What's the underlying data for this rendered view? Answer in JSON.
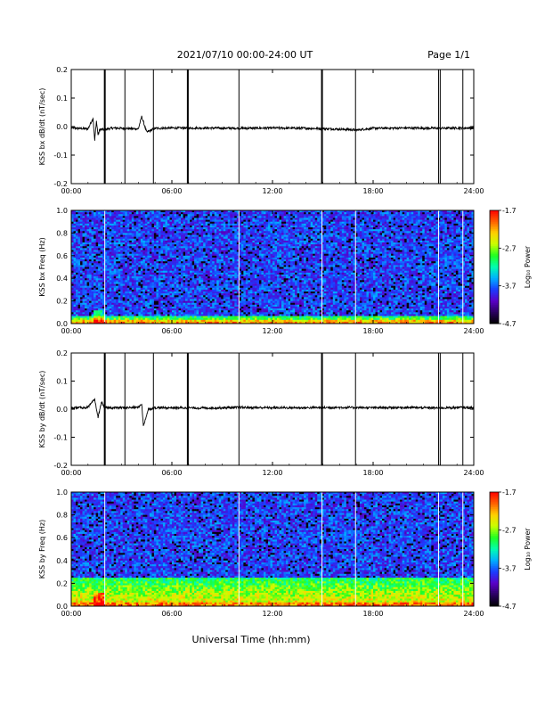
{
  "header": {
    "title": "2021/07/10  00:00-24:00 UT",
    "page": "Page 1/1"
  },
  "xlabel": "Universal Time (hh:mm)",
  "chart_data": [
    {
      "type": "line",
      "ylabel": "KSS bx dB/dt (nT/sec)",
      "xlim": [
        0,
        24
      ],
      "ylim": [
        -0.2,
        0.2
      ],
      "xticks": [
        "00:00",
        "06:00",
        "12:00",
        "18:00",
        "24:00"
      ],
      "yticks": [
        "0.2",
        "0.1",
        "0.0",
        "-0.1",
        "-0.2"
      ],
      "series": [
        {
          "x": [
            0.0,
            1.0,
            1.3,
            1.4,
            1.5,
            1.6,
            1.7,
            2.0,
            2.5,
            3.0,
            4.0,
            4.2,
            4.5,
            5.0,
            6.0,
            8.0,
            10.0,
            12.0,
            14.0,
            15.5,
            16.5,
            17.0,
            18.0,
            20.0,
            22.0,
            23.0,
            24.0
          ],
          "y": [
            -0.005,
            -0.008,
            0.03,
            -0.05,
            0.02,
            -0.03,
            -0.01,
            -0.01,
            -0.005,
            -0.006,
            -0.008,
            0.035,
            -0.02,
            -0.006,
            -0.005,
            -0.005,
            -0.006,
            -0.005,
            -0.006,
            -0.008,
            -0.01,
            -0.012,
            -0.006,
            -0.005,
            -0.006,
            -0.005,
            -0.005
          ]
        }
      ],
      "spikes_hours": [
        2.0,
        3.2,
        4.9,
        6.95,
        10.0,
        14.95,
        16.95,
        21.9,
        22.0,
        23.35
      ],
      "grid": false
    },
    {
      "type": "heatmap",
      "ylabel": "KSS bx Freq (Hz)",
      "xlim": [
        0,
        24
      ],
      "ylim": [
        0.0,
        1.0
      ],
      "xticks": [
        "00:00",
        "06:00",
        "12:00",
        "18:00",
        "24:00"
      ],
      "yticks": [
        "1.0",
        "0.8",
        "0.6",
        "0.4",
        "0.2",
        "0.0"
      ],
      "colorbar": {
        "label": "Log₁₀ Power",
        "ticks": [
          "-1.7",
          "-2.7",
          "-3.7",
          "-4.7"
        ],
        "range": [
          -4.7,
          -1.7
        ],
        "colors": [
          "#000000",
          "#2a0060",
          "#5a00c8",
          "#1a3cff",
          "#00b0ff",
          "#00ffb0",
          "#20ff20",
          "#c8ff00",
          "#ffd000",
          "#ff6000",
          "#ff0000"
        ]
      },
      "gap_lines_hours": [
        2.0,
        10.0,
        14.95,
        16.95,
        21.9,
        23.35
      ],
      "low_freq_band_hz": 0.06
    },
    {
      "type": "line",
      "ylabel": "KSS by dB/dt (nT/sec)",
      "xlim": [
        0,
        24
      ],
      "ylim": [
        -0.2,
        0.2
      ],
      "xticks": [
        "00:00",
        "06:00",
        "12:00",
        "18:00",
        "24:00"
      ],
      "yticks": [
        "0.2",
        "0.1",
        "0.0",
        "-0.1",
        "-0.2"
      ],
      "series": [
        {
          "x": [
            0.0,
            1.0,
            1.4,
            1.6,
            1.8,
            2.0,
            3.0,
            4.0,
            4.2,
            4.3,
            4.6,
            5.0,
            6.0,
            8.0,
            10.0,
            12.0,
            14.0,
            16.0,
            18.0,
            20.0,
            22.0,
            23.0,
            24.0
          ],
          "y": [
            0.005,
            0.006,
            0.035,
            -0.03,
            0.025,
            0.005,
            0.005,
            0.006,
            0.02,
            -0.06,
            0.0,
            0.005,
            0.005,
            0.004,
            0.006,
            0.005,
            0.005,
            0.006,
            0.005,
            0.006,
            0.004,
            0.006,
            0.005
          ]
        }
      ],
      "spikes_hours": [
        2.0,
        3.2,
        4.9,
        6.95,
        10.0,
        14.95,
        16.95,
        21.9,
        22.0,
        23.35
      ],
      "grid": false
    },
    {
      "type": "heatmap",
      "ylabel": "KSS by Freq (Hz)",
      "xlim": [
        0,
        24
      ],
      "ylim": [
        0.0,
        1.0
      ],
      "xticks": [
        "00:00",
        "06:00",
        "12:00",
        "18:00",
        "24:00"
      ],
      "yticks": [
        "1.0",
        "0.8",
        "0.6",
        "0.4",
        "0.2",
        "0.0"
      ],
      "colorbar": {
        "label": "Log₁₀ Power",
        "ticks": [
          "-1.7",
          "-2.7",
          "-3.7",
          "-4.7"
        ],
        "range": [
          -4.7,
          -1.7
        ],
        "colors": [
          "#000000",
          "#2a0060",
          "#5a00c8",
          "#1a3cff",
          "#00b0ff",
          "#00ffb0",
          "#20ff20",
          "#c8ff00",
          "#ffd000",
          "#ff6000",
          "#ff0000"
        ]
      },
      "gap_lines_hours": [
        2.0,
        10.0,
        14.95,
        16.95,
        21.9,
        23.35
      ],
      "low_freq_band_hz": 0.25
    }
  ]
}
